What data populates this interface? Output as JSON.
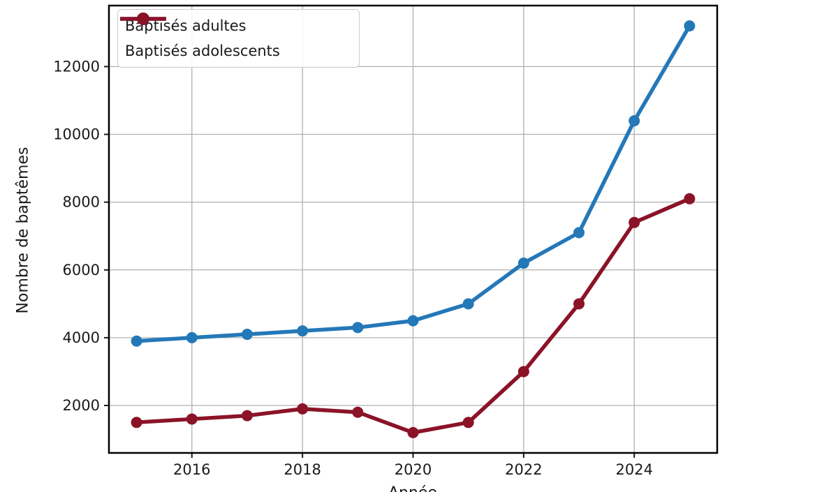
{
  "chart_data": {
    "type": "line",
    "title": "",
    "xlabel": "Année",
    "ylabel": "Nombre de baptêmes",
    "x": [
      2015,
      2016,
      2017,
      2018,
      2019,
      2020,
      2021,
      2022,
      2023,
      2024,
      2025
    ],
    "series": [
      {
        "name": "Baptisés adultes",
        "color": "#2478b8",
        "marker": "circle",
        "values": [
          3900,
          4000,
          4100,
          4200,
          4300,
          4500,
          5000,
          6200,
          7100,
          10400,
          13200
        ]
      },
      {
        "name": "Baptisés adolescents",
        "color": "#8b1328",
        "marker": "circle",
        "values": [
          1500,
          1600,
          1700,
          1900,
          1800,
          1200,
          1500,
          3000,
          5000,
          7400,
          8100
        ]
      }
    ],
    "xticks": [
      2016,
      2018,
      2020,
      2022,
      2024
    ],
    "yticks": [
      2000,
      4000,
      6000,
      8000,
      10000,
      12000
    ],
    "xlim": [
      2014.5,
      2025.5
    ],
    "ylim": [
      600,
      13800
    ],
    "grid": true,
    "grid_color": "#b0b0b0",
    "frame_color": "#000000",
    "text_color": "#1a1a1a",
    "background": "#ffffff",
    "legend_position": "upper left",
    "xlabel_clipped": true
  }
}
